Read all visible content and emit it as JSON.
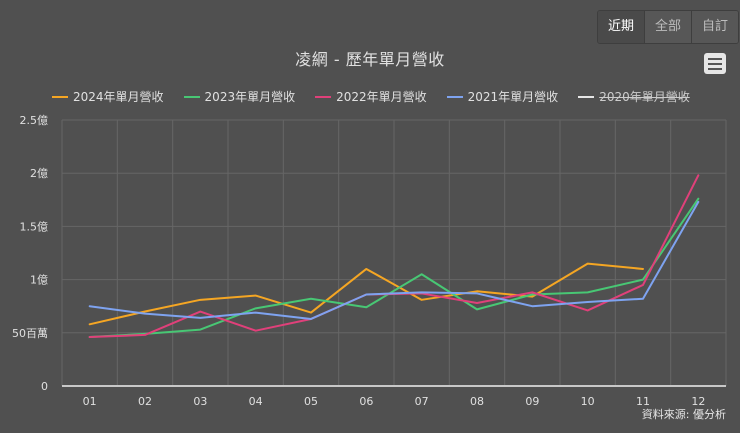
{
  "range_selector": {
    "buttons": [
      {
        "label": "近期",
        "active": true
      },
      {
        "label": "全部",
        "active": false
      },
      {
        "label": "自訂",
        "active": false
      }
    ]
  },
  "menu": {
    "icon": "hamburger-menu-icon"
  },
  "credits": "資料來源: 優分析",
  "colors": {
    "background": "#505050",
    "grid": "#666666",
    "axis": "#c8c8c8",
    "2024": "#f5a623",
    "2023": "#48c774",
    "2022": "#e0407a",
    "2021": "#7ea3f0",
    "2020": "#e6e6e6"
  },
  "chart_data": {
    "type": "line",
    "title": "凌網 - 歷年單月營收",
    "xlabel": "",
    "ylabel": "",
    "categories": [
      "01",
      "02",
      "03",
      "04",
      "05",
      "06",
      "07",
      "08",
      "09",
      "10",
      "11",
      "12"
    ],
    "y_ticks": [
      {
        "value": 0,
        "label": "0"
      },
      {
        "value": 50000000,
        "label": "50百萬"
      },
      {
        "value": 100000000,
        "label": "1億"
      },
      {
        "value": 150000000,
        "label": "1.5億"
      },
      {
        "value": 200000000,
        "label": "2億"
      },
      {
        "value": 250000000,
        "label": "2.5億"
      }
    ],
    "ylim": [
      0,
      250000000
    ],
    "grid": true,
    "legend_position": "top-left",
    "series": [
      {
        "name": "2024年單月營收",
        "key": "2024",
        "visible": true,
        "values": [
          58000000,
          70000000,
          81000000,
          85000000,
          69000000,
          110000000,
          81000000,
          89000000,
          84000000,
          115000000,
          110000000,
          null
        ]
      },
      {
        "name": "2023年單月營收",
        "key": "2023",
        "visible": true,
        "values": [
          46000000,
          49000000,
          53000000,
          73000000,
          82000000,
          74000000,
          105000000,
          72000000,
          86000000,
          88000000,
          100000000,
          176000000
        ]
      },
      {
        "name": "2022年單月營收",
        "key": "2022",
        "visible": true,
        "values": [
          46000000,
          48000000,
          70000000,
          52000000,
          63000000,
          86000000,
          87000000,
          78000000,
          88000000,
          71000000,
          95000000,
          198000000
        ]
      },
      {
        "name": "2021年單月營收",
        "key": "2021",
        "visible": true,
        "values": [
          75000000,
          68000000,
          64000000,
          69000000,
          63000000,
          86000000,
          88000000,
          87000000,
          75000000,
          79000000,
          82000000,
          173000000
        ]
      },
      {
        "name": "2020年單月營收",
        "key": "2020",
        "visible": false,
        "values": []
      }
    ]
  }
}
